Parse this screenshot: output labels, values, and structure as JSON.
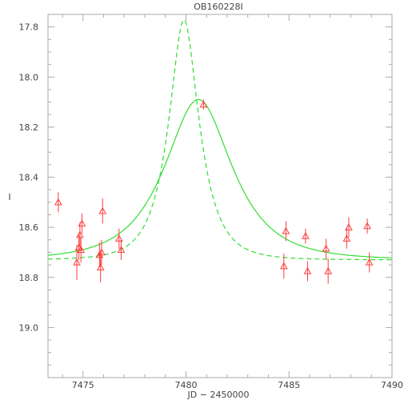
{
  "chart_data": {
    "type": "scatter",
    "title": "OB160228I",
    "xlabel": "JD − 2450000",
    "ylabel": "I",
    "xlim": [
      7473.3,
      7490.0
    ],
    "ylim": [
      19.2,
      17.75
    ],
    "y_inverted": true,
    "grid": false,
    "x_ticks": [
      7475,
      7480,
      7485,
      7490
    ],
    "x_tick_labels": [
      "7475",
      "7480",
      "7485",
      "7490"
    ],
    "y_ticks": [
      17.8,
      18.0,
      18.2,
      18.4,
      18.6,
      18.8,
      19.0
    ],
    "y_tick_labels": [
      "17.8",
      "18.0",
      "18.2",
      "18.4",
      "18.6",
      "18.8",
      "19.0"
    ],
    "colors": {
      "data": "#ff3b3b",
      "model": "#33dd33",
      "axes": "#aaaaaa",
      "text": "#444444"
    },
    "series": [
      {
        "type": "points",
        "marker": "triangle",
        "points": [
          {
            "x": 7473.8,
            "y": 18.5,
            "err": 0.04
          },
          {
            "x": 7474.7,
            "y": 18.74,
            "err": 0.07
          },
          {
            "x": 7474.8,
            "y": 18.68,
            "err": 0.05
          },
          {
            "x": 7474.85,
            "y": 18.63,
            "err": 0.05
          },
          {
            "x": 7474.9,
            "y": 18.69,
            "err": 0.05
          },
          {
            "x": 7474.95,
            "y": 18.585,
            "err": 0.04
          },
          {
            "x": 7475.8,
            "y": 18.71,
            "err": 0.05
          },
          {
            "x": 7475.85,
            "y": 18.76,
            "err": 0.06
          },
          {
            "x": 7475.9,
            "y": 18.7,
            "err": 0.05
          },
          {
            "x": 7475.95,
            "y": 18.535,
            "err": 0.05
          },
          {
            "x": 7476.75,
            "y": 18.645,
            "err": 0.04
          },
          {
            "x": 7476.85,
            "y": 18.69,
            "err": 0.04
          },
          {
            "x": 7480.85,
            "y": 18.11,
            "err": 0.02
          },
          {
            "x": 7484.75,
            "y": 18.755,
            "err": 0.05
          },
          {
            "x": 7484.85,
            "y": 18.615,
            "err": 0.04
          },
          {
            "x": 7485.8,
            "y": 18.635,
            "err": 0.03
          },
          {
            "x": 7485.9,
            "y": 18.775,
            "err": 0.04
          },
          {
            "x": 7486.8,
            "y": 18.685,
            "err": 0.04
          },
          {
            "x": 7486.9,
            "y": 18.775,
            "err": 0.05
          },
          {
            "x": 7487.8,
            "y": 18.645,
            "err": 0.04
          },
          {
            "x": 7487.9,
            "y": 18.6,
            "err": 0.04
          },
          {
            "x": 7488.8,
            "y": 18.595,
            "err": 0.03
          },
          {
            "x": 7488.9,
            "y": 18.74,
            "err": 0.04
          }
        ]
      },
      {
        "type": "line",
        "style": "solid",
        "curve": {
          "t0": 7480.6,
          "tE": 2.5,
          "base": 18.73,
          "peak": 18.115
        }
      },
      {
        "type": "line",
        "style": "dashed",
        "curve": {
          "t0": 7479.9,
          "tE": 1.35,
          "base": 18.73,
          "peak": 17.75
        }
      }
    ]
  }
}
